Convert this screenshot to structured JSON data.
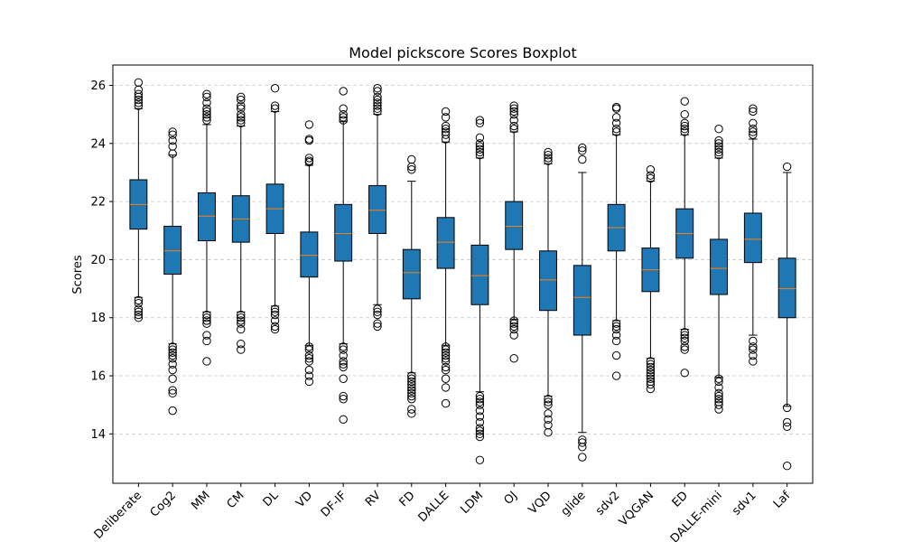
{
  "chart_data": {
    "type": "boxplot",
    "title": "Model pickscore Scores Boxplot",
    "xlabel": "",
    "ylabel": "Scores",
    "ylim": [
      12.3,
      26.7
    ],
    "yticks": [
      14,
      16,
      18,
      20,
      22,
      24,
      26
    ],
    "grid": "y-dashed",
    "box_color": "#1f77b4",
    "median_color": "#ff7f0e",
    "categories": [
      "Deliberate",
      "Cog2",
      "MM",
      "CM",
      "DL",
      "VD",
      "DF-IF",
      "RV",
      "FD",
      "DALLE",
      "LDM",
      "OJ",
      "VQD",
      "glide",
      "sdv2",
      "VQGAN",
      "ED",
      "DALLE-mini",
      "sdv1",
      "Laf"
    ],
    "boxes": [
      {
        "q1": 21.05,
        "median": 21.9,
        "q3": 22.75,
        "whislo": 18.7,
        "whishi": 25.2,
        "fliers": [
          18.0,
          18.1,
          18.2,
          18.3,
          18.5,
          18.6,
          25.3,
          25.4,
          25.5,
          25.6,
          25.7,
          25.85,
          26.1
        ]
      },
      {
        "q1": 19.5,
        "median": 20.3,
        "q3": 21.15,
        "whislo": 17.1,
        "whishi": 23.6,
        "fliers": [
          14.8,
          15.4,
          15.5,
          15.9,
          16.2,
          16.4,
          16.6,
          16.7,
          16.8,
          16.9,
          17.0,
          23.65,
          23.9,
          24.1,
          24.3,
          24.4
        ]
      },
      {
        "q1": 20.65,
        "median": 21.5,
        "q3": 22.3,
        "whislo": 18.2,
        "whishi": 24.65,
        "fliers": [
          16.5,
          17.2,
          17.4,
          17.8,
          17.9,
          18.0,
          18.1,
          24.8,
          24.9,
          25.0,
          25.1,
          25.2,
          25.4,
          25.6,
          25.7
        ]
      },
      {
        "q1": 20.6,
        "median": 21.4,
        "q3": 22.2,
        "whislo": 18.2,
        "whishi": 24.6,
        "fliers": [
          16.9,
          17.1,
          17.6,
          17.8,
          17.9,
          18.0,
          18.1,
          24.7,
          24.8,
          24.9,
          25.0,
          25.2,
          25.3,
          25.5,
          25.6
        ]
      },
      {
        "q1": 20.9,
        "median": 21.75,
        "q3": 22.6,
        "whislo": 18.4,
        "whishi": 25.1,
        "fliers": [
          17.6,
          17.7,
          17.9,
          18.1,
          18.2,
          18.3,
          25.2,
          25.3,
          25.9
        ]
      },
      {
        "q1": 19.4,
        "median": 20.15,
        "q3": 20.95,
        "whislo": 17.05,
        "whishi": 23.25,
        "fliers": [
          15.8,
          16.0,
          16.2,
          16.5,
          16.6,
          16.7,
          16.9,
          17.0,
          23.35,
          23.4,
          23.5,
          24.1,
          24.15,
          24.65
        ]
      },
      {
        "q1": 19.95,
        "median": 20.9,
        "q3": 21.9,
        "whislo": 17.1,
        "whishi": 24.75,
        "fliers": [
          14.5,
          15.2,
          15.3,
          15.9,
          16.3,
          16.4,
          16.5,
          16.7,
          16.9,
          17.0,
          24.8,
          24.9,
          25.0,
          25.2,
          25.8
        ]
      },
      {
        "q1": 20.9,
        "median": 21.7,
        "q3": 22.55,
        "whislo": 18.45,
        "whishi": 25.0,
        "fliers": [
          17.7,
          17.8,
          18.1,
          18.2,
          18.3,
          25.1,
          25.2,
          25.3,
          25.4,
          25.5,
          25.6,
          25.8,
          25.9
        ]
      },
      {
        "q1": 18.65,
        "median": 19.55,
        "q3": 20.35,
        "whislo": 16.1,
        "whishi": 22.7,
        "fliers": [
          14.7,
          14.85,
          15.2,
          15.3,
          15.4,
          15.5,
          15.6,
          15.7,
          15.8,
          15.9,
          16.0,
          23.1,
          23.2,
          23.45
        ]
      },
      {
        "q1": 19.7,
        "median": 20.6,
        "q3": 21.45,
        "whislo": 17.05,
        "whishi": 24.05,
        "fliers": [
          15.05,
          15.6,
          15.9,
          16.2,
          16.3,
          16.5,
          16.6,
          16.7,
          16.8,
          16.9,
          17.0,
          24.15,
          24.3,
          24.4,
          24.5,
          24.6,
          24.9,
          25.1
        ]
      },
      {
        "q1": 18.45,
        "median": 19.45,
        "q3": 20.5,
        "whislo": 15.45,
        "whishi": 23.5,
        "fliers": [
          13.1,
          13.9,
          14.0,
          14.1,
          14.2,
          14.4,
          14.6,
          14.8,
          15.0,
          15.1,
          15.2,
          15.3,
          23.6,
          23.7,
          23.8,
          23.9,
          24.0,
          24.2,
          24.7,
          24.8
        ]
      },
      {
        "q1": 20.35,
        "median": 21.15,
        "q3": 22.0,
        "whislo": 17.95,
        "whishi": 24.4,
        "fliers": [
          16.6,
          17.4,
          17.6,
          17.7,
          17.8,
          17.9,
          24.5,
          24.6,
          24.8,
          25.0,
          25.1,
          25.2,
          25.3
        ]
      },
      {
        "q1": 18.25,
        "median": 19.3,
        "q3": 20.3,
        "whislo": 15.3,
        "whishi": 23.3,
        "fliers": [
          14.05,
          14.3,
          14.5,
          14.7,
          15.0,
          15.1,
          15.2,
          23.4,
          23.5,
          23.6,
          23.7
        ]
      },
      {
        "q1": 17.4,
        "median": 18.7,
        "q3": 19.8,
        "whislo": 14.05,
        "whishi": 23.0,
        "fliers": [
          13.2,
          13.55,
          13.7,
          13.8,
          23.45,
          23.75,
          23.85
        ]
      },
      {
        "q1": 20.3,
        "median": 21.1,
        "q3": 21.9,
        "whislo": 17.9,
        "whishi": 24.3,
        "fliers": [
          16.0,
          16.7,
          17.2,
          17.4,
          17.6,
          17.7,
          17.8,
          24.4,
          24.5,
          24.7,
          24.9,
          25.2,
          25.25
        ]
      },
      {
        "q1": 18.9,
        "median": 19.65,
        "q3": 20.4,
        "whislo": 16.6,
        "whishi": 22.7,
        "fliers": [
          15.55,
          15.7,
          15.8,
          15.9,
          16.0,
          16.1,
          16.2,
          16.3,
          16.4,
          16.5,
          22.8,
          22.9,
          23.1
        ]
      },
      {
        "q1": 20.05,
        "median": 20.9,
        "q3": 21.75,
        "whislo": 17.6,
        "whishi": 24.3,
        "fliers": [
          16.1,
          16.9,
          17.0,
          17.2,
          17.3,
          17.4,
          17.5,
          24.4,
          24.5,
          24.6,
          24.7,
          25.0,
          25.45
        ]
      },
      {
        "q1": 18.8,
        "median": 19.7,
        "q3": 20.7,
        "whislo": 15.95,
        "whishi": 23.5,
        "fliers": [
          14.85,
          15.0,
          15.1,
          15.2,
          15.3,
          15.4,
          15.6,
          15.8,
          15.9,
          23.6,
          23.7,
          23.8,
          23.9,
          24.0,
          24.1,
          24.5
        ]
      },
      {
        "q1": 19.9,
        "median": 20.7,
        "q3": 21.6,
        "whislo": 17.4,
        "whishi": 24.15,
        "fliers": [
          16.5,
          16.7,
          16.9,
          17.0,
          17.2,
          24.3,
          24.4,
          24.5,
          24.7,
          25.1,
          25.2
        ]
      },
      {
        "q1": 18.0,
        "median": 19.0,
        "q3": 20.05,
        "whislo": 14.95,
        "whishi": 23.0,
        "fliers": [
          12.9,
          14.25,
          14.4,
          14.9,
          23.2
        ]
      }
    ]
  }
}
